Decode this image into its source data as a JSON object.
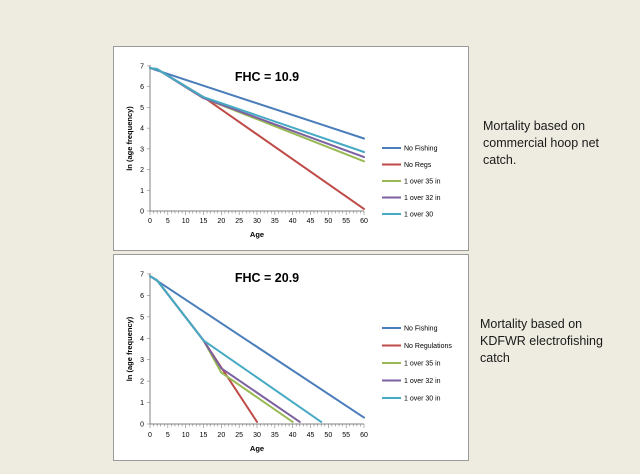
{
  "chart_data": [
    {
      "type": "line",
      "title": "FHC = 10.9",
      "xlabel": "Age",
      "ylabel": "ln (age frequency)",
      "xlim": [
        0,
        60
      ],
      "ylim": [
        0,
        7
      ],
      "xticks": [
        "0",
        "5",
        "10",
        "15",
        "20",
        "25",
        "30",
        "35",
        "40",
        "45",
        "50",
        "55",
        "60"
      ],
      "yticks": [
        "0",
        "1",
        "2",
        "3",
        "4",
        "5",
        "6",
        "7"
      ],
      "grid": false,
      "legend_position": "right",
      "series": [
        {
          "name": "No Fishing",
          "color": "#4a7ebb",
          "x": [
            0,
            60
          ],
          "y": [
            6.9,
            3.5
          ]
        },
        {
          "name": "No Regs",
          "color": "#be4b48",
          "x": [
            0,
            2,
            15,
            60
          ],
          "y": [
            6.9,
            6.85,
            5.5,
            0.1
          ]
        },
        {
          "name": "1 over 35 in",
          "color": "#98b954",
          "x": [
            0,
            2,
            15,
            60
          ],
          "y": [
            6.9,
            6.85,
            5.45,
            2.4
          ]
        },
        {
          "name": "1 over 32 in",
          "color": "#7d60a0",
          "x": [
            0,
            2,
            15,
            60
          ],
          "y": [
            6.9,
            6.85,
            5.45,
            2.6
          ]
        },
        {
          "name": "1 over 30",
          "color": "#46aac4",
          "x": [
            0,
            2,
            15,
            60
          ],
          "y": [
            6.9,
            6.85,
            5.5,
            2.85
          ]
        }
      ]
    },
    {
      "type": "line",
      "title": "FHC = 20.9",
      "xlabel": "Age",
      "ylabel": "ln (age frequency)",
      "xlim": [
        0,
        60
      ],
      "ylim": [
        0,
        7
      ],
      "xticks": [
        "0",
        "5",
        "10",
        "15",
        "20",
        "25",
        "30",
        "35",
        "40",
        "45",
        "50",
        "55",
        "60"
      ],
      "yticks": [
        "0",
        "1",
        "2",
        "3",
        "4",
        "5",
        "6",
        "7"
      ],
      "grid": false,
      "legend_position": "right",
      "series": [
        {
          "name": "No Fishing",
          "color": "#4a7ebb",
          "x": [
            0,
            60
          ],
          "y": [
            6.9,
            0.3
          ]
        },
        {
          "name": "No Regulations",
          "color": "#be4b48",
          "x": [
            0,
            2,
            15,
            30
          ],
          "y": [
            6.9,
            6.7,
            3.9,
            0.1
          ]
        },
        {
          "name": "1 over 35 in",
          "color": "#98b954",
          "x": [
            0,
            2,
            15,
            20,
            40
          ],
          "y": [
            6.9,
            6.7,
            3.9,
            2.4,
            0.1
          ]
        },
        {
          "name": "1 over 32 in",
          "color": "#7d60a0",
          "x": [
            0,
            2,
            15,
            20,
            42
          ],
          "y": [
            6.9,
            6.7,
            3.9,
            2.6,
            0.1
          ]
        },
        {
          "name": "1 over 30 in",
          "color": "#46aac4",
          "x": [
            0,
            2,
            15,
            48
          ],
          "y": [
            6.9,
            6.7,
            3.9,
            0.1
          ]
        }
      ]
    }
  ],
  "captions": [
    "Mortality based on commercial hoop net catch.",
    "Mortality based on KDFWR electrofishing catch"
  ]
}
